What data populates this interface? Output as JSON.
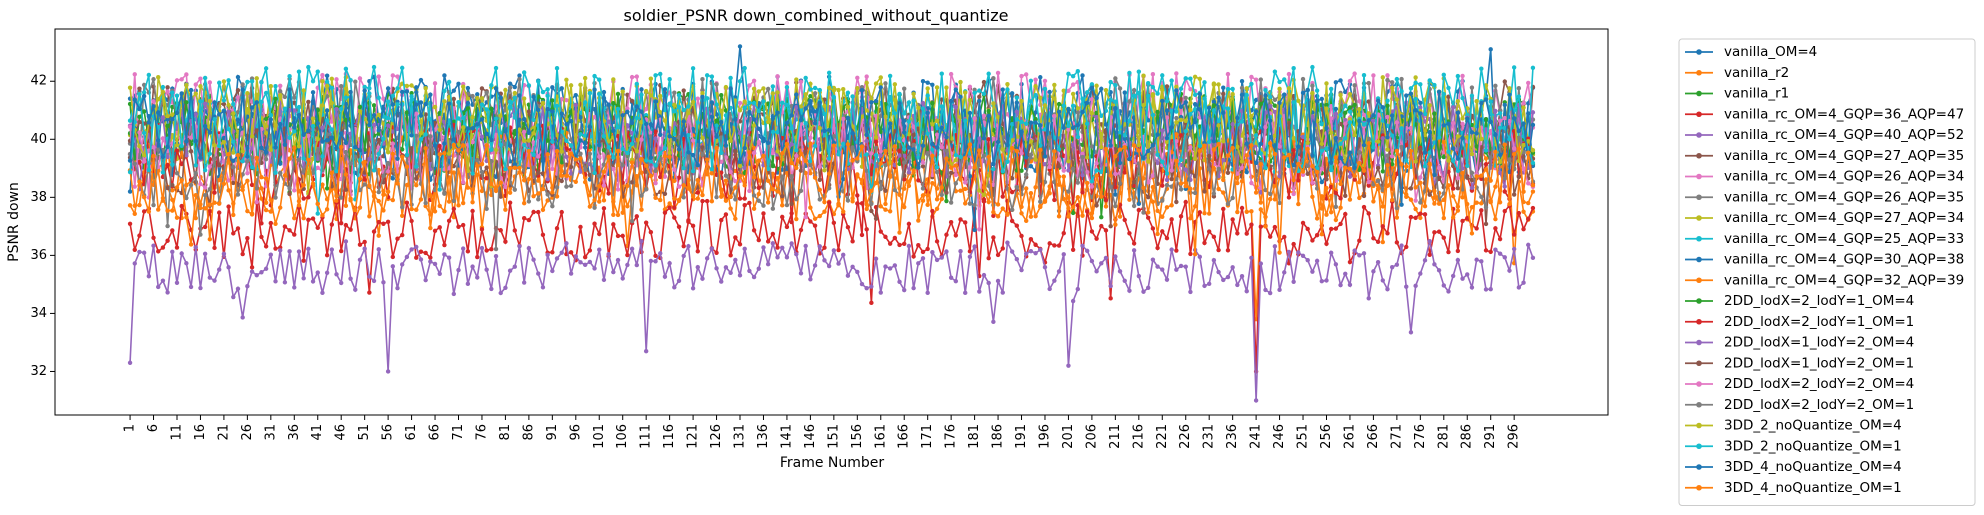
{
  "chart_data": {
    "type": "line",
    "title": "soldier_PSNR down_combined_without_quantize",
    "xlabel": "Frame Number",
    "ylabel": "PSNR down",
    "xlim": [
      -15,
      316
    ],
    "ylim": [
      30.5,
      43.8
    ],
    "x_ticks": [
      1,
      6,
      11,
      16,
      21,
      26,
      31,
      36,
      41,
      46,
      51,
      56,
      61,
      66,
      71,
      76,
      81,
      86,
      91,
      96,
      101,
      106,
      111,
      116,
      121,
      126,
      131,
      136,
      141,
      146,
      151,
      156,
      161,
      166,
      171,
      176,
      181,
      186,
      191,
      196,
      201,
      206,
      211,
      216,
      221,
      226,
      231,
      236,
      241,
      246,
      251,
      256,
      261,
      266,
      271,
      276,
      281,
      286,
      291,
      296
    ],
    "y_ticks": [
      32,
      34,
      36,
      38,
      40,
      42
    ],
    "grid": false,
    "legend_position": "outside-right",
    "x_start": 1,
    "x_end": 300,
    "series": [
      {
        "name": "vanilla_OM=4",
        "color": "#1f77b4",
        "base": 40.8,
        "amp": 1.4
      },
      {
        "name": "vanilla_r2",
        "color": "#ff7f0e",
        "base": 38.3,
        "amp": 1.1
      },
      {
        "name": "vanilla_r1",
        "color": "#2ca02c",
        "base": 40.3,
        "amp": 1.3
      },
      {
        "name": "vanilla_rc_OM=4_GQP=36_AQP=47",
        "color": "#d62728",
        "base": 36.9,
        "amp": 1.0
      },
      {
        "name": "vanilla_rc_OM=4_GQP=40_AQP=52",
        "color": "#9467bd",
        "base": 35.6,
        "amp": 0.9
      },
      {
        "name": "vanilla_rc_OM=4_GQP=27_AQP=35",
        "color": "#8c564b",
        "base": 40.6,
        "amp": 1.4
      },
      {
        "name": "vanilla_rc_OM=4_GQP=26_AQP=34",
        "color": "#e377c2",
        "base": 40.9,
        "amp": 1.4
      },
      {
        "name": "vanilla_rc_OM=4_GQP=26_AQP=35",
        "color": "#7f7f7f",
        "base": 40.7,
        "amp": 1.4
      },
      {
        "name": "vanilla_rc_OM=4_GQP=27_AQP=34",
        "color": "#bcbd22",
        "base": 40.8,
        "amp": 1.4
      },
      {
        "name": "vanilla_rc_OM=4_GQP=25_AQP=33",
        "color": "#17becf",
        "base": 41.1,
        "amp": 1.4
      },
      {
        "name": "vanilla_rc_OM=4_GQP=30_AQP=38",
        "color": "#1f77b4",
        "base": 39.9,
        "amp": 1.4
      },
      {
        "name": "vanilla_rc_OM=4_GQP=32_AQP=39",
        "color": "#ff7f0e",
        "base": 39.0,
        "amp": 1.3
      },
      {
        "name": "2DD_lodX=2_lodY=1_OM=4",
        "color": "#2ca02c",
        "base": 40.1,
        "amp": 1.3
      },
      {
        "name": "2DD_lodX=2_lodY=1_OM=1",
        "color": "#d62728",
        "base": 39.2,
        "amp": 1.3
      },
      {
        "name": "2DD_lodX=1_lodY=2_OM=4",
        "color": "#9467bd",
        "base": 40.0,
        "amp": 1.3
      },
      {
        "name": "2DD_lodX=1_lodY=2_OM=1",
        "color": "#8c564b",
        "base": 39.3,
        "amp": 1.3
      },
      {
        "name": "2DD_lodX=2_lodY=2_OM=4",
        "color": "#e377c2",
        "base": 39.6,
        "amp": 1.3
      },
      {
        "name": "2DD_lodX=2_lodY=2_OM=1",
        "color": "#7f7f7f",
        "base": 38.9,
        "amp": 1.3
      },
      {
        "name": "3DD_2_noQuantize_OM=4",
        "color": "#bcbd22",
        "base": 40.5,
        "amp": 1.4
      },
      {
        "name": "3DD_2_noQuantize_OM=1",
        "color": "#17becf",
        "base": 40.2,
        "amp": 1.4
      },
      {
        "name": "3DD_4_noQuantize_OM=4",
        "color": "#1f77b4",
        "base": 40.4,
        "amp": 1.4
      },
      {
        "name": "3DD_4_noQuantize_OM=1",
        "color": "#ff7f0e",
        "base": 38.6,
        "amp": 1.3
      }
    ],
    "notable_points": [
      {
        "series": "vanilla_rc_OM=4_GQP=40_AQP=52",
        "x": 1,
        "y": 32.3
      },
      {
        "series": "vanilla_rc_OM=4_GQP=40_AQP=52",
        "x": 56,
        "y": 32.0
      },
      {
        "series": "vanilla_rc_OM=4_GQP=40_AQP=52",
        "x": 241,
        "y": 31.0
      },
      {
        "series": "vanilla_rc_OM=4_GQP=36_AQP=47",
        "x": 241,
        "y": 32.0
      },
      {
        "series": "vanilla_r2",
        "x": 241,
        "y": 33.8
      },
      {
        "series": "vanilla_rc_OM=4_GQP=40_AQP=52",
        "x": 201,
        "y": 32.2
      },
      {
        "series": "vanilla_rc_OM=4_GQP=40_AQP=52",
        "x": 111,
        "y": 32.7
      },
      {
        "series": "vanilla_OM=4",
        "x": 131,
        "y": 43.2
      },
      {
        "series": "vanilla_OM=4",
        "x": 291,
        "y": 43.1
      }
    ]
  }
}
